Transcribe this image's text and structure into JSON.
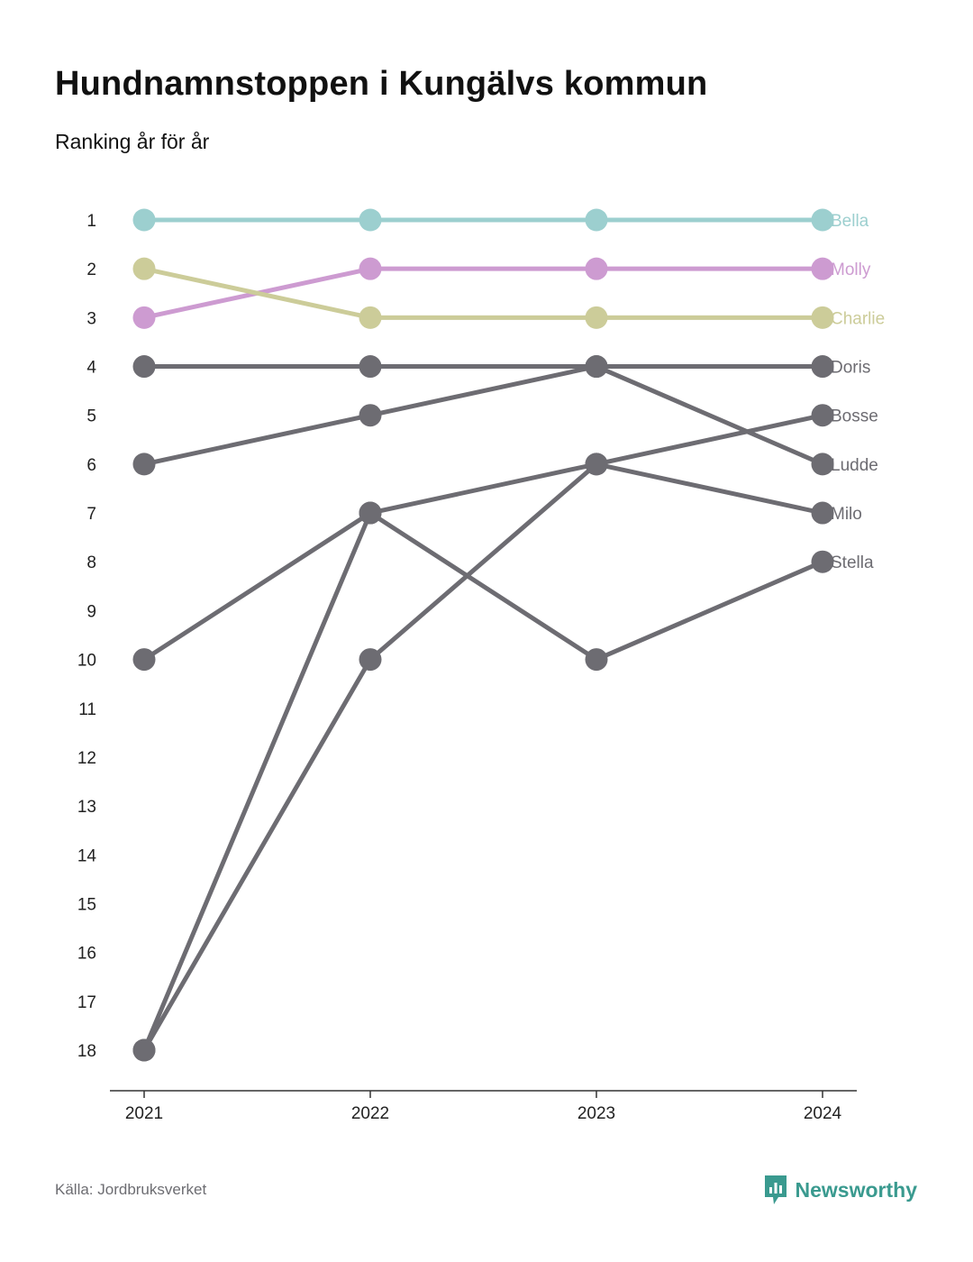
{
  "title": "Hundnamnstoppen i Kungälvs kommun",
  "subtitle": "Ranking år för år",
  "footer": {
    "source": "Källa: Jordbruksverket",
    "brand": "Newsworthy",
    "brand_icon": "newsworthy-logo-icon",
    "brand_color": "#3a9a8f"
  },
  "chart_data": {
    "type": "line",
    "x": [
      "2021",
      "2022",
      "2023",
      "2024"
    ],
    "y_ticks": [
      "1",
      "2",
      "3",
      "4",
      "5",
      "6",
      "7",
      "8",
      "9",
      "10",
      "11",
      "12",
      "13",
      "14",
      "15",
      "16",
      "17",
      "18"
    ],
    "ylim": [
      1,
      18
    ],
    "y_inverted": true,
    "grid": false,
    "legend": "end-labels",
    "series": [
      {
        "name": "Bella",
        "color": "#9ccfcf",
        "values": [
          1,
          1,
          1,
          1
        ]
      },
      {
        "name": "Molly",
        "color": "#cd9bd1",
        "values": [
          3,
          2,
          2,
          2
        ]
      },
      {
        "name": "Charlie",
        "color": "#cccc99",
        "values": [
          2,
          3,
          3,
          3
        ]
      },
      {
        "name": "Doris",
        "color": "#6d6c72",
        "values": [
          4,
          4,
          4,
          4
        ]
      },
      {
        "name": "Bosse",
        "color": "#6d6c72",
        "values": [
          18,
          10,
          6,
          5
        ]
      },
      {
        "name": "Ludde",
        "color": "#6d6c72",
        "values": [
          6,
          5,
          4,
          6
        ]
      },
      {
        "name": "Milo",
        "color": "#6d6c72",
        "values": [
          18,
          7,
          6,
          7
        ]
      },
      {
        "name": "Stella",
        "color": "#6d6c72",
        "values": [
          10,
          7,
          10,
          8
        ]
      }
    ]
  }
}
